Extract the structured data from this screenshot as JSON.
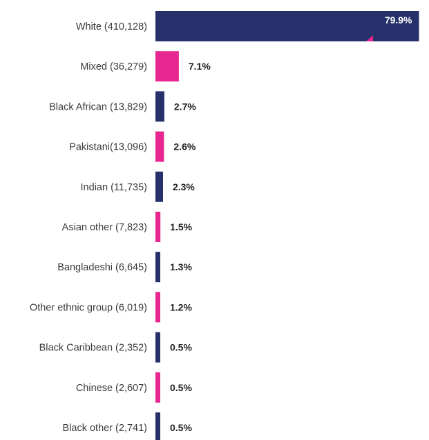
{
  "chart_data": {
    "type": "bar",
    "orientation": "horizontal",
    "categories": [
      "White (410,128)",
      "Mixed (36,279)",
      "Black African (13,829)",
      "Pakistani(13,096)",
      "Indian (11,735)",
      "Asian other (7,823)",
      "Bangladeshi (6,645)",
      "Other ethnic group (6,019)",
      "Black Caribbean (2,352)",
      "Chinese (2,607)",
      "Black other (2,741)"
    ],
    "values": [
      79.9,
      7.1,
      2.7,
      2.6,
      2.3,
      1.5,
      1.3,
      1.2,
      0.5,
      0.5,
      0.5
    ],
    "value_labels": [
      "79.9%",
      "7.1%",
      "2.7%",
      "2.6%",
      "2.3%",
      "1.5%",
      "1.3%",
      "1.2%",
      "0.5%",
      "0.5%",
      "0.5%"
    ],
    "colors": [
      "#26306a",
      "#e7268f",
      "#26306a",
      "#e7268f",
      "#26306a",
      "#e7268f",
      "#26306a",
      "#e7268f",
      "#26306a",
      "#e7268f",
      "#26306a"
    ],
    "xlim": [
      0,
      80
    ],
    "grid": false,
    "legend": "none"
  }
}
